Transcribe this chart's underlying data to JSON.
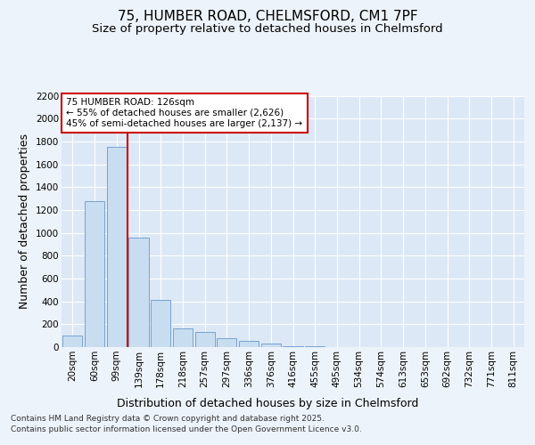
{
  "title_line1": "75, HUMBER ROAD, CHELMSFORD, CM1 7PF",
  "title_line2": "Size of property relative to detached houses in Chelmsford",
  "xlabel": "Distribution of detached houses by size in Chelmsford",
  "ylabel": "Number of detached properties",
  "categories": [
    "20sqm",
    "60sqm",
    "99sqm",
    "139sqm",
    "178sqm",
    "218sqm",
    "257sqm",
    "297sqm",
    "336sqm",
    "376sqm",
    "416sqm",
    "455sqm",
    "495sqm",
    "534sqm",
    "574sqm",
    "613sqm",
    "653sqm",
    "692sqm",
    "732sqm",
    "771sqm",
    "811sqm"
  ],
  "values": [
    100,
    1280,
    1750,
    960,
    415,
    160,
    130,
    75,
    55,
    30,
    10,
    5,
    3,
    2,
    1,
    1,
    0,
    0,
    0,
    0,
    0
  ],
  "bar_color": "#c9ddf0",
  "bar_edge_color": "#6699cc",
  "vline_x": 2.5,
  "vline_color": "#cc0000",
  "annotation_text": "75 HUMBER ROAD: 126sqm\n← 55% of detached houses are smaller (2,626)\n45% of semi-detached houses are larger (2,137) →",
  "annotation_box_color": "#ffffff",
  "annotation_box_edge": "#cc0000",
  "ylim": [
    0,
    2200
  ],
  "yticks": [
    0,
    200,
    400,
    600,
    800,
    1000,
    1200,
    1400,
    1600,
    1800,
    2000,
    2200
  ],
  "footnote": "Contains HM Land Registry data © Crown copyright and database right 2025.\nContains public sector information licensed under the Open Government Licence v3.0.",
  "bg_color": "#edf3fa",
  "plot_bg": "#dce8f5",
  "grid_color": "#ffffff",
  "title_fontsize": 11,
  "subtitle_fontsize": 9.5,
  "axis_label_fontsize": 9,
  "tick_fontsize": 7.5,
  "footnote_fontsize": 6.5,
  "annot_fontsize": 7.5
}
